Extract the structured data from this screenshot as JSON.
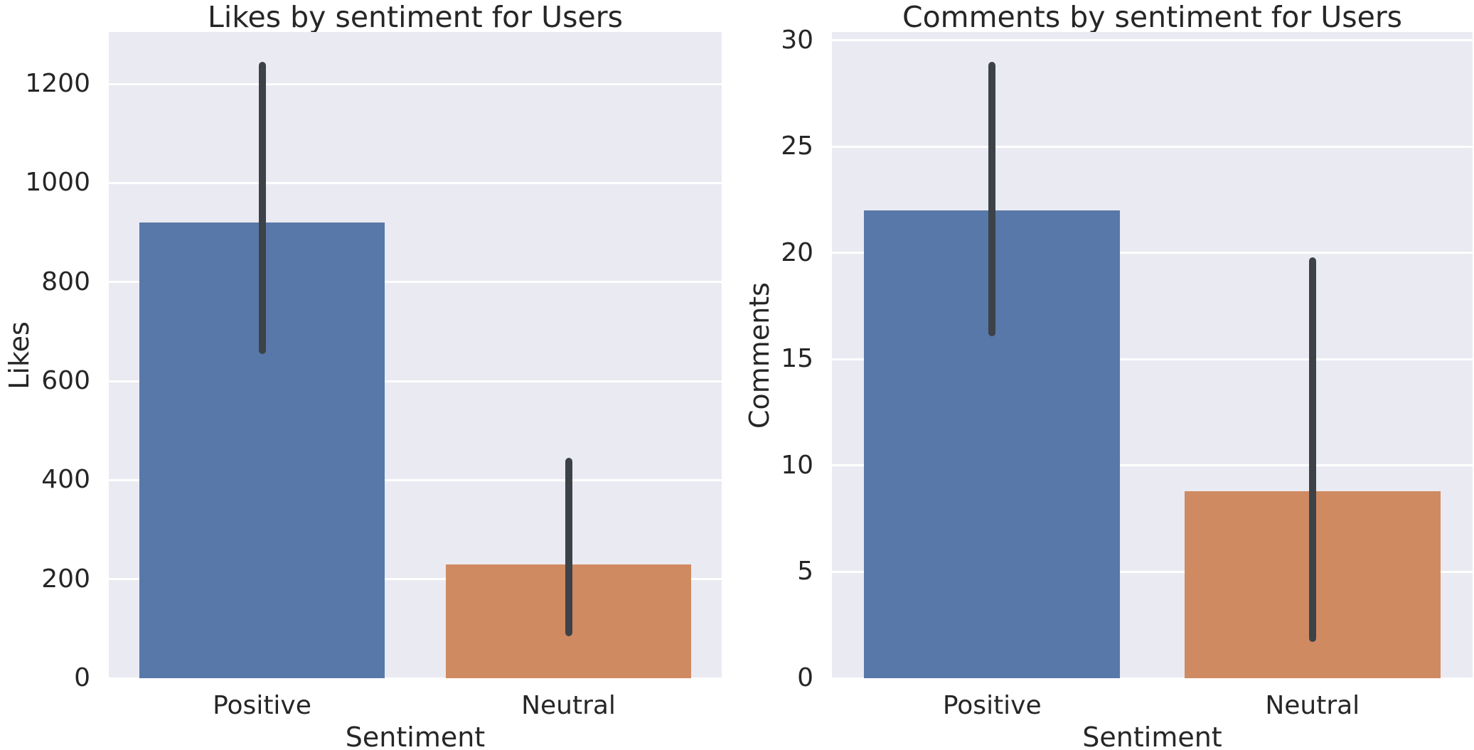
{
  "figure": {
    "background": "#ffffff",
    "axes_background": "#eaeaf2",
    "grid_color": "#ffffff",
    "text_color": "#262626",
    "error_bar_color": "#3c4248",
    "style": "seaborn-darkgrid"
  },
  "chart_data": [
    {
      "type": "bar",
      "title": "Likes by sentiment for Users",
      "xlabel": "Sentiment",
      "ylabel": "Likes",
      "categories": [
        "Positive",
        "Neutral"
      ],
      "values": [
        920,
        230
      ],
      "errors": [
        [
          655,
          1245
        ],
        [
          85,
          445
        ]
      ],
      "bar_colors": [
        "#5778a9",
        "#d08a61"
      ],
      "ylim": [
        0,
        1305
      ],
      "yticks": [
        0,
        200,
        400,
        600,
        800,
        1000,
        1200
      ],
      "grid": "horizontal-white-gridlines",
      "legend": "none"
    },
    {
      "type": "bar",
      "title": "Comments by sentiment for Users",
      "xlabel": "Sentiment",
      "ylabel": "Comments",
      "categories": [
        "Positive",
        "Neutral"
      ],
      "values": [
        22,
        8.8
      ],
      "errors": [
        [
          16.1,
          29
        ],
        [
          1.7,
          19.8
        ]
      ],
      "bar_colors": [
        "#5778a9",
        "#d08a61"
      ],
      "ylim": [
        0,
        30.4
      ],
      "yticks": [
        0,
        5,
        10,
        15,
        20,
        25,
        30
      ],
      "grid": "horizontal-white-gridlines",
      "legend": "none"
    }
  ]
}
